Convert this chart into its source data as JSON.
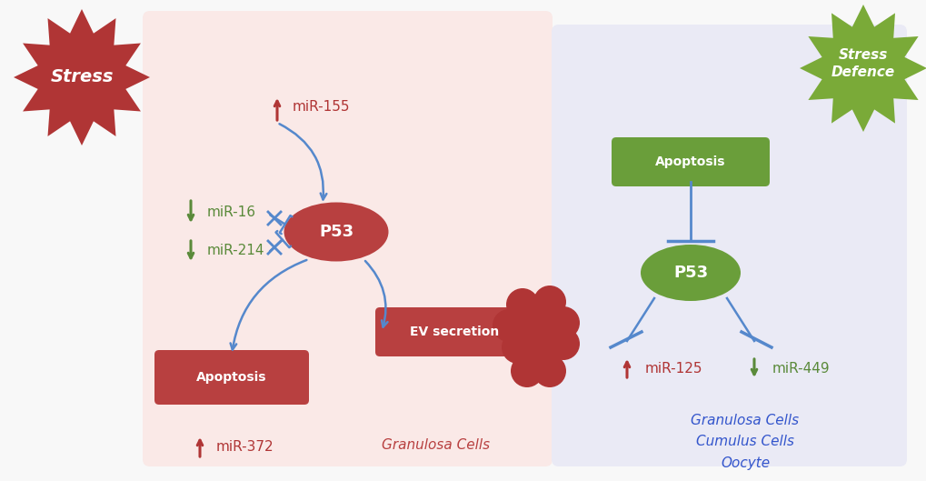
{
  "bg_color": "#f8f8f8",
  "left_box_color": "#fae9e7",
  "right_box_color": "#eaeaf5",
  "stress_color": "#b03535",
  "defence_color": "#7aaa38",
  "p53_left_color": "#b84040",
  "p53_right_color": "#6a9e3a",
  "apoptosis_left_color": "#b84040",
  "apoptosis_right_color": "#6a9e3a",
  "ev_color": "#b03535",
  "arrow_blue": "#5588cc",
  "arrow_red": "#b03535",
  "arrow_green": "#5a8a3a",
  "stress_text": "Stress",
  "defence_text": "Stress\nDefence",
  "p53_text": "P53",
  "apoptosis_text": "Apoptosis",
  "ev_text": "EV secretion",
  "granulosa_left": "Granulosa Cells",
  "granulosa_right": "Granulosa Cells\nCumulus Cells\nOocyte"
}
